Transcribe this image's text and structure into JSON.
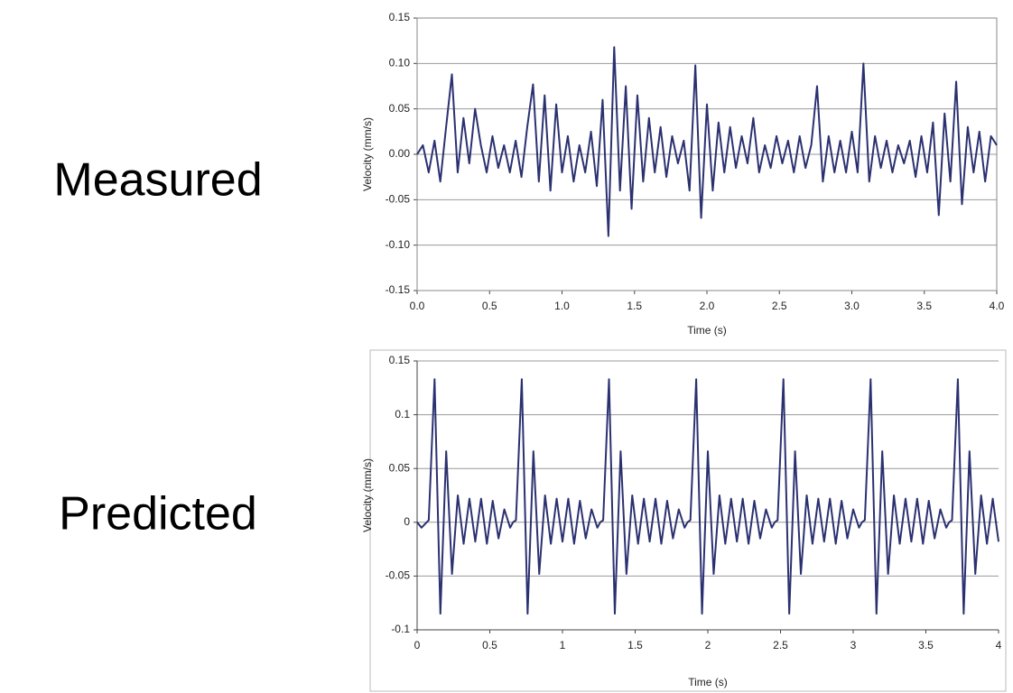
{
  "chart_data": [
    {
      "type": "line",
      "title": "Measured",
      "x_label": "Time (s)",
      "y_label": "Velocity (mm/s)",
      "x": [
        0,
        0.04,
        0.08,
        0.12,
        0.16,
        0.2,
        0.24,
        0.28,
        0.32,
        0.36,
        0.4,
        0.44,
        0.48,
        0.52,
        0.56,
        0.6,
        0.64,
        0.68,
        0.72,
        0.76,
        0.8,
        0.84,
        0.88,
        0.92,
        0.96,
        1,
        1.04,
        1.08,
        1.12,
        1.16,
        1.2,
        1.24,
        1.28,
        1.32,
        1.36,
        1.4,
        1.44,
        1.48,
        1.52,
        1.56,
        1.6,
        1.64,
        1.68,
        1.72,
        1.76,
        1.8,
        1.84,
        1.88,
        1.92,
        1.96,
        2,
        2.04,
        2.08,
        2.12,
        2.16,
        2.2,
        2.24,
        2.28,
        2.32,
        2.36,
        2.4,
        2.44,
        2.48,
        2.52,
        2.56,
        2.6,
        2.64,
        2.68,
        2.72,
        2.76,
        2.8,
        2.84,
        2.88,
        2.92,
        2.96,
        3,
        3.04,
        3.08,
        3.12,
        3.16,
        3.2,
        3.24,
        3.28,
        3.32,
        3.36,
        3.4,
        3.44,
        3.48,
        3.52,
        3.56,
        3.6,
        3.64,
        3.68,
        3.72,
        3.76,
        3.8,
        3.84,
        3.88,
        3.92,
        3.96,
        4
      ],
      "series": [
        {
          "color": "#2b3170",
          "values": [
            0,
            0.01,
            -0.02,
            0.015,
            -0.03,
            0.03,
            0.088,
            -0.02,
            0.04,
            -0.01,
            0.05,
            0.01,
            -0.02,
            0.02,
            -0.015,
            0.01,
            -0.02,
            0.015,
            -0.025,
            0.03,
            0.077,
            -0.03,
            0.065,
            -0.04,
            0.055,
            -0.02,
            0.02,
            -0.03,
            0.01,
            -0.02,
            0.025,
            -0.035,
            0.06,
            -0.09,
            0.118,
            -0.04,
            0.075,
            -0.06,
            0.065,
            -0.03,
            0.04,
            -0.02,
            0.03,
            -0.025,
            0.02,
            -0.01,
            0.015,
            -0.04,
            0.098,
            -0.07,
            0.055,
            -0.04,
            0.035,
            -0.02,
            0.03,
            -0.015,
            0.02,
            -0.01,
            0.04,
            -0.02,
            0.01,
            -0.015,
            0.02,
            -0.01,
            0.015,
            -0.02,
            0.02,
            -0.015,
            0.01,
            0.075,
            -0.03,
            0.02,
            -0.02,
            0.015,
            -0.02,
            0.025,
            -0.02,
            0.1,
            -0.03,
            0.02,
            -0.015,
            0.015,
            -0.02,
            0.01,
            -0.01,
            0.015,
            -0.025,
            0.02,
            -0.02,
            0.035,
            -0.067,
            0.045,
            -0.03,
            0.08,
            -0.055,
            0.03,
            -0.02,
            0.025,
            -0.03,
            0.02,
            0.01
          ]
        }
      ],
      "xlim": [
        0,
        4
      ],
      "ylim": [
        -0.15,
        0.15
      ],
      "xticks": [
        {
          "value": 0,
          "label": "0.0"
        },
        0.5,
        {
          "value": 1,
          "label": "1.0"
        },
        1.5,
        {
          "value": 2,
          "label": "2.0"
        },
        2.5,
        {
          "value": 3,
          "label": "3.0"
        },
        3.5,
        {
          "value": 4,
          "label": "4.0"
        }
      ],
      "yticks": [
        -0.15,
        {
          "value": -0.1,
          "label": "-0.10"
        },
        -0.05,
        {
          "value": 0,
          "label": "0.00"
        },
        0.05,
        {
          "value": 0.1,
          "label": "0.10"
        },
        0.15
      ],
      "grid": true
    },
    {
      "type": "line",
      "title": "Predicted",
      "x_label": "Time (s)",
      "y_label": "Velocity (mm/s)",
      "x": [
        0,
        0.03,
        0.08,
        0.12,
        0.16,
        0.2,
        0.24,
        0.28,
        0.32,
        0.36,
        0.4,
        0.44,
        0.48,
        0.52,
        0.56,
        0.6,
        0.64,
        0.66,
        0.68,
        0.72,
        0.76,
        0.8,
        0.84,
        0.88,
        0.92,
        0.96,
        1,
        1.04,
        1.08,
        1.12,
        1.16,
        1.2,
        1.24,
        1.26,
        1.28,
        1.32,
        1.36,
        1.4,
        1.44,
        1.48,
        1.52,
        1.56,
        1.6,
        1.64,
        1.68,
        1.72,
        1.76,
        1.8,
        1.84,
        1.86,
        1.88,
        1.92,
        1.96,
        2,
        2.04,
        2.08,
        2.12,
        2.16,
        2.2,
        2.24,
        2.28,
        2.32,
        2.36,
        2.4,
        2.44,
        2.46,
        2.48,
        2.52,
        2.56,
        2.6,
        2.64,
        2.68,
        2.72,
        2.76,
        2.8,
        2.84,
        2.88,
        2.92,
        2.96,
        3,
        3.04,
        3.06,
        3.08,
        3.12,
        3.16,
        3.2,
        3.24,
        3.28,
        3.32,
        3.36,
        3.4,
        3.44,
        3.48,
        3.52,
        3.56,
        3.6,
        3.64,
        3.66,
        3.68,
        3.72,
        3.76,
        3.8,
        3.84,
        3.88,
        3.92,
        3.96,
        4
      ],
      "series": [
        {
          "color": "#2b3170",
          "values": [
            0,
            -0.005,
            0.002,
            0.133,
            -0.085,
            0.066,
            -0.048,
            0.025,
            -0.02,
            0.022,
            -0.018,
            0.022,
            -0.02,
            0.02,
            -0.015,
            0.012,
            -0.005,
            0,
            0.002,
            0.133,
            -0.085,
            0.066,
            -0.048,
            0.025,
            -0.02,
            0.022,
            -0.018,
            0.022,
            -0.02,
            0.02,
            -0.015,
            0.012,
            -0.005,
            0,
            0.002,
            0.133,
            -0.085,
            0.066,
            -0.048,
            0.025,
            -0.02,
            0.022,
            -0.018,
            0.022,
            -0.02,
            0.02,
            -0.015,
            0.012,
            -0.005,
            0,
            0.002,
            0.133,
            -0.085,
            0.066,
            -0.048,
            0.025,
            -0.02,
            0.022,
            -0.018,
            0.022,
            -0.02,
            0.02,
            -0.015,
            0.012,
            -0.005,
            0,
            0.002,
            0.133,
            -0.085,
            0.066,
            -0.048,
            0.025,
            -0.02,
            0.022,
            -0.018,
            0.022,
            -0.02,
            0.02,
            -0.015,
            0.012,
            -0.005,
            0,
            0.002,
            0.133,
            -0.085,
            0.066,
            -0.048,
            0.025,
            -0.02,
            0.022,
            -0.018,
            0.022,
            -0.02,
            0.02,
            -0.015,
            0.012,
            -0.005,
            0,
            0.002,
            0.133,
            -0.085,
            0.066,
            -0.048,
            0.025,
            -0.02,
            0.022,
            -0.018
          ]
        }
      ],
      "xlim": [
        0,
        4
      ],
      "ylim": [
        -0.1,
        0.15
      ],
      "xticks": [
        0,
        0.5,
        1,
        1.5,
        2,
        2.5,
        3,
        3.5,
        4
      ],
      "yticks": [
        -0.1,
        -0.05,
        0,
        0.05,
        0.1,
        0.15
      ],
      "grid": true
    }
  ]
}
